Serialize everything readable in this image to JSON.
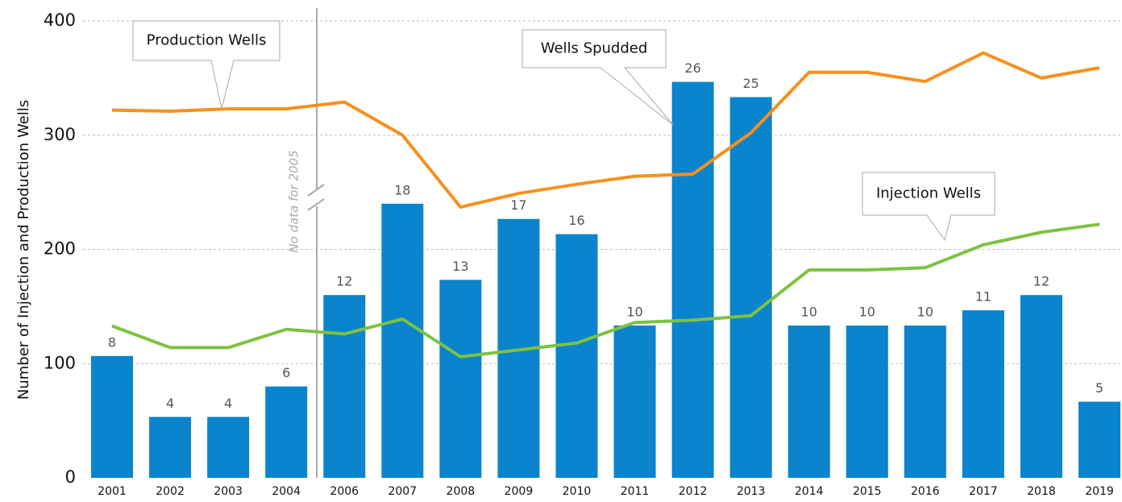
{
  "chart_data": {
    "type": "bar-line",
    "y_label": "Number of Injection and Production Wells",
    "categories": [
      "2001",
      "2002",
      "2003",
      "2004",
      "2006",
      "2007",
      "2008",
      "2009",
      "2010",
      "2011",
      "2012",
      "2013",
      "2014",
      "2015",
      "2016",
      "2017",
      "2018",
      "2019"
    ],
    "series": [
      {
        "name": "Wells Spudded",
        "type": "bar",
        "axis": "y2",
        "color": "#0a84cc",
        "values": [
          8,
          4,
          4,
          6,
          12,
          18,
          13,
          17,
          16,
          10,
          26,
          25,
          10,
          10,
          10,
          11,
          12,
          5
        ]
      },
      {
        "name": "Production Wells",
        "type": "line",
        "color": "#f7901e",
        "values": [
          322,
          321,
          323,
          323,
          329,
          300,
          237,
          249,
          257,
          264,
          266,
          302,
          355,
          355,
          347,
          372,
          350,
          359
        ]
      },
      {
        "name": "Injection Wells",
        "type": "line",
        "color": "#7dc242",
        "values": [
          133,
          114,
          114,
          130,
          126,
          139,
          106,
          112,
          118,
          136,
          138,
          142,
          182,
          182,
          184,
          204,
          215,
          222
        ]
      }
    ],
    "annotation": "No data for 2005",
    "ylim": [
      0,
      400
    ],
    "yticks": [
      0,
      100,
      200,
      300,
      400
    ],
    "y2lim": [
      0,
      30
    ],
    "grid": true
  }
}
